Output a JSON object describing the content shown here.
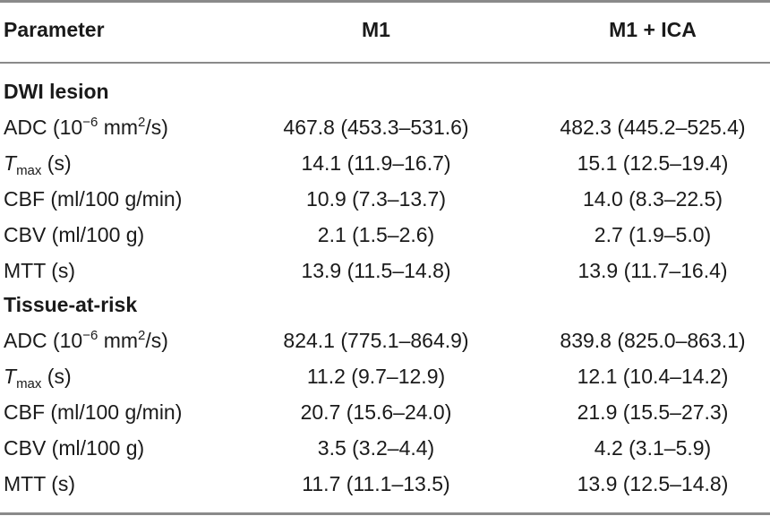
{
  "header": {
    "param": "Parameter",
    "m1": "M1",
    "m1ica": "M1 + ICA"
  },
  "labels": {
    "adc_pre": "ADC (10",
    "adc_exp": "−6",
    "adc_mid": " mm",
    "adc_sq": "2",
    "adc_post": "/s)",
    "tmax_t": "T",
    "tmax_sub": "max",
    "tmax_post": " (s)",
    "cbf": "CBF (ml/100 g/min)",
    "cbv": "CBV (ml/100 g)",
    "mtt": "MTT (s)"
  },
  "sections": [
    {
      "title": "DWI lesion",
      "rows": [
        {
          "m1": "467.8 (453.3–531.6)",
          "m1ica": "482.3 (445.2–525.4)"
        },
        {
          "m1": "14.1 (11.9–16.7)",
          "m1ica": "15.1 (12.5–19.4)"
        },
        {
          "m1": "10.9 (7.3–13.7)",
          "m1ica": "14.0 (8.3–22.5)"
        },
        {
          "m1": "2.1 (1.5–2.6)",
          "m1ica": "2.7 (1.9–5.0)"
        },
        {
          "m1": "13.9 (11.5–14.8)",
          "m1ica": "13.9 (11.7–16.4)"
        }
      ]
    },
    {
      "title": "Tissue-at-risk",
      "rows": [
        {
          "m1": "824.1 (775.1–864.9)",
          "m1ica": "839.8 (825.0–863.1)"
        },
        {
          "m1": "11.2 (9.7–12.9)",
          "m1ica": "12.1 (10.4–14.2)"
        },
        {
          "m1": "20.7 (15.6–24.0)",
          "m1ica": "21.9 (15.5–27.3)"
        },
        {
          "m1": "3.5 (3.2–4.4)",
          "m1ica": "4.2 (3.1–5.9)"
        },
        {
          "m1": "11.7 (11.1–13.5)",
          "m1ica": "13.9 (12.5–14.8)"
        }
      ]
    }
  ]
}
